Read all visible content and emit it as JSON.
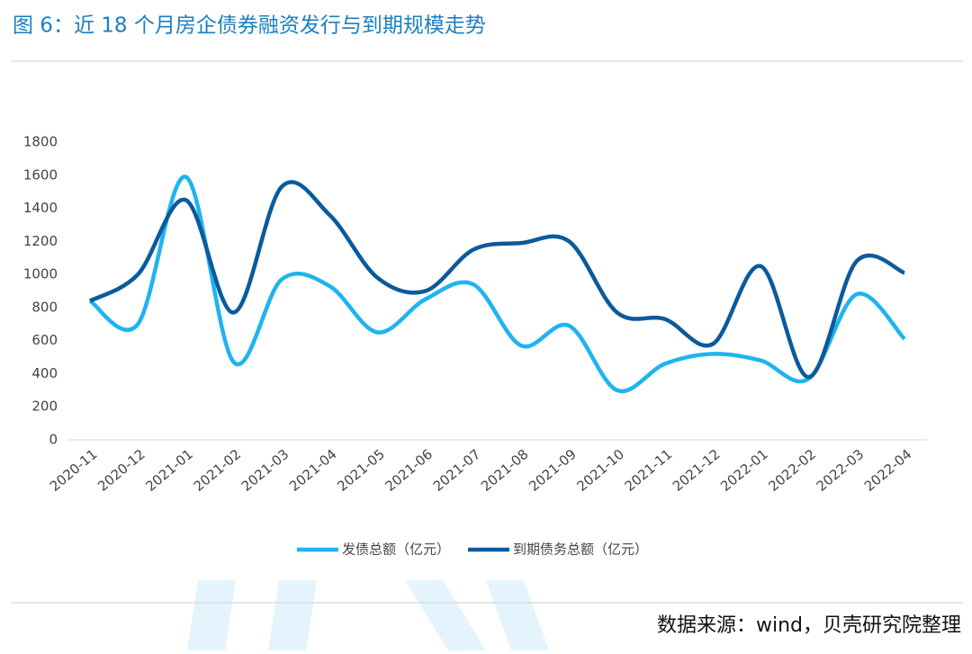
{
  "chart_data": {
    "type": "line",
    "title": "图 6：近 18 个月房企债券融资发行与到期规模走势",
    "categories": [
      "2020-11",
      "2020-12",
      "2021-01",
      "2021-02",
      "2021-03",
      "2021-04",
      "2021-05",
      "2021-06",
      "2021-07",
      "2021-08",
      "2021-09",
      "2021-10",
      "2021-11",
      "2021-12",
      "2022-01",
      "2022-02",
      "2022-03",
      "2022-04"
    ],
    "series": [
      {
        "name": "发债总额（亿元）",
        "color": "#1fb4f0",
        "values": [
          840,
          700,
          1590,
          470,
          970,
          930,
          650,
          850,
          940,
          570,
          690,
          300,
          460,
          520,
          480,
          370,
          880,
          610
        ]
      },
      {
        "name": "到期债务总额（亿元）",
        "color": "#0b5a9c",
        "values": [
          840,
          1000,
          1450,
          770,
          1530,
          1360,
          980,
          900,
          1150,
          1190,
          1200,
          770,
          730,
          580,
          1050,
          380,
          1080,
          1010
        ]
      }
    ],
    "ylim": [
      0,
      1800
    ],
    "yticks": [
      0,
      200,
      400,
      600,
      800,
      1000,
      1200,
      1400,
      1600,
      1800
    ],
    "grid": false,
    "legend": "bottom"
  },
  "source": "数据来源：wind，贝壳研究院整理"
}
